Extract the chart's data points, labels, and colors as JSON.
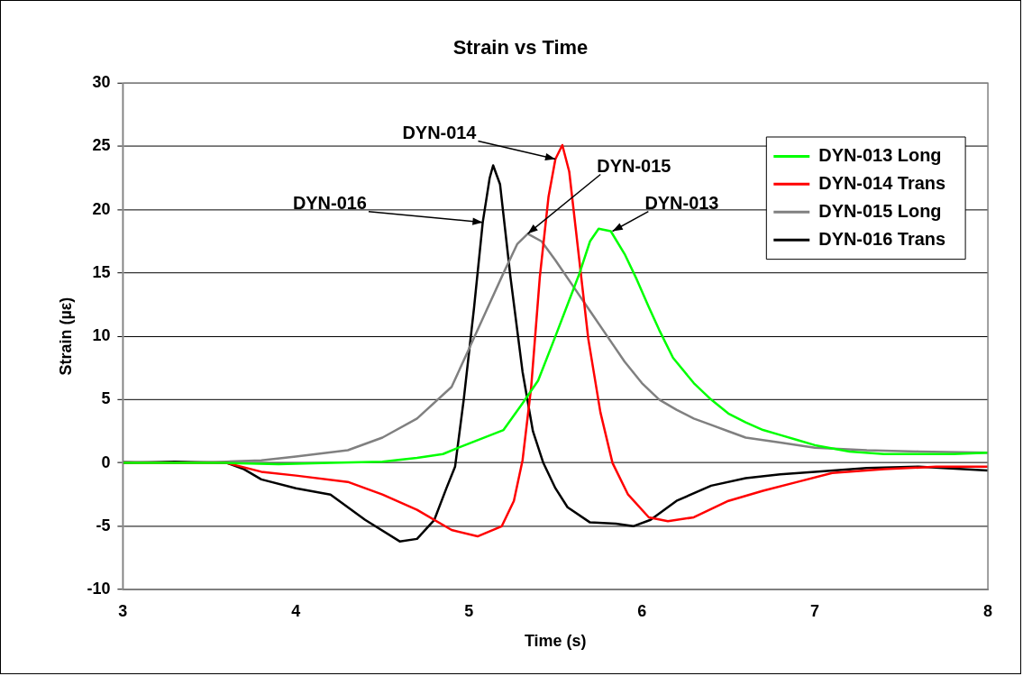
{
  "chart_data": {
    "type": "line",
    "title": "Strain vs Time",
    "xlabel": "Time (s)",
    "ylabel": "Strain (µε)",
    "xlim": [
      3,
      8
    ],
    "xticks": [
      3,
      4,
      5,
      6,
      7,
      8
    ],
    "ylim": [
      -10,
      30
    ],
    "yticks": [
      -10,
      -5,
      0,
      5,
      10,
      15,
      20,
      25,
      30
    ],
    "grid": "y",
    "legend": "top right",
    "marker": "none",
    "line_style": "solid",
    "series": [
      {
        "name": "DYN-013 Long",
        "color": "#00ff00",
        "x": [
          3,
          3.3,
          3.6,
          3.9,
          4.2,
          4.5,
          4.7,
          4.85,
          4.94,
          5.05,
          5.2,
          5.31,
          5.4,
          5.5,
          5.57,
          5.64,
          5.7,
          5.75,
          5.82,
          5.9,
          5.97,
          6.04,
          6.1,
          6.18,
          6.3,
          6.4,
          6.5,
          6.6,
          6.7,
          6.8,
          6.9,
          7,
          7.2,
          7.4,
          7.6,
          7.8,
          8
        ],
        "values": [
          0,
          0,
          0,
          -0.1,
          0,
          0.1,
          0.4,
          0.7,
          1.2,
          1.8,
          2.6,
          4.7,
          6.5,
          10,
          12.5,
          15,
          17.5,
          18.5,
          18.3,
          16.5,
          14.5,
          12.3,
          10.5,
          8.3,
          6.3,
          5,
          3.9,
          3.2,
          2.6,
          2.2,
          1.8,
          1.4,
          0.9,
          0.7,
          0.7,
          0.7,
          0.8
        ]
      },
      {
        "name": "DYN-014 Trans",
        "color": "#ff0000",
        "x": [
          3,
          3.3,
          3.6,
          3.8,
          4,
          4.3,
          4.5,
          4.7,
          4.9,
          5.05,
          5.19,
          5.26,
          5.31,
          5.36,
          5.41,
          5.46,
          5.5,
          5.54,
          5.58,
          5.63,
          5.69,
          5.76,
          5.83,
          5.92,
          6.04,
          6.15,
          6.3,
          6.5,
          6.7,
          6.9,
          7.1,
          7.4,
          7.7,
          8
        ],
        "values": [
          0,
          0,
          0,
          -0.7,
          -1,
          -1.5,
          -2.5,
          -3.7,
          -5.3,
          -5.8,
          -5,
          -3,
          0.2,
          6,
          14.7,
          21,
          24,
          25.1,
          23,
          17,
          9.8,
          4,
          0,
          -2.5,
          -4.3,
          -4.6,
          -4.3,
          -3,
          -2.2,
          -1.5,
          -0.8,
          -0.5,
          -0.3,
          -0.3
        ]
      },
      {
        "name": "DYN-015 Long",
        "color": "#808080",
        "x": [
          3,
          3.3,
          3.6,
          3.8,
          4,
          4.3,
          4.5,
          4.7,
          4.9,
          5,
          5.1,
          5.2,
          5.28,
          5.34,
          5.42,
          5.5,
          5.6,
          5.7,
          5.8,
          5.9,
          6,
          6.1,
          6.2,
          6.3,
          6.4,
          6.5,
          6.6,
          6.8,
          7,
          7.3,
          7.6,
          8
        ],
        "values": [
          0.1,
          0,
          0.1,
          0.2,
          0.5,
          1,
          2,
          3.5,
          6,
          9,
          12,
          15,
          17.3,
          18.1,
          17.5,
          16,
          14,
          12,
          10,
          8,
          6.3,
          5,
          4.2,
          3.5,
          3,
          2.5,
          2,
          1.6,
          1.2,
          1,
          0.9,
          0.8
        ]
      },
      {
        "name": "DYN-016 Trans",
        "color": "#000000",
        "x": [
          3,
          3.3,
          3.6,
          3.7,
          3.8,
          4,
          4.2,
          4.4,
          4.6,
          4.7,
          4.8,
          4.87,
          4.92,
          4.97,
          5.03,
          5.08,
          5.12,
          5.14,
          5.18,
          5.24,
          5.31,
          5.37,
          5.43,
          5.5,
          5.57,
          5.7,
          5.85,
          5.95,
          6.05,
          6.2,
          6.4,
          6.6,
          6.8,
          7,
          7.3,
          7.6,
          8
        ],
        "values": [
          0,
          0.1,
          0,
          -0.5,
          -1.3,
          -2,
          -2.5,
          -4.5,
          -6.2,
          -6,
          -4.5,
          -2,
          -0.3,
          5,
          12.3,
          19,
          22.5,
          23.5,
          22,
          14.7,
          7.2,
          2.5,
          0,
          -2,
          -3.5,
          -4.7,
          -4.8,
          -5,
          -4.5,
          -3,
          -1.8,
          -1.2,
          -0.9,
          -0.7,
          -0.4,
          -0.3,
          -0.6
        ]
      }
    ],
    "annotations": [
      {
        "text": "DYN-014",
        "x": 5.5,
        "y": 24
      },
      {
        "text": "DYN-015",
        "x": 5.34,
        "y": 18.1
      },
      {
        "text": "DYN-016",
        "x": 5.08,
        "y": 19
      },
      {
        "text": "DYN-013",
        "x": 5.83,
        "y": 18.3
      }
    ]
  }
}
